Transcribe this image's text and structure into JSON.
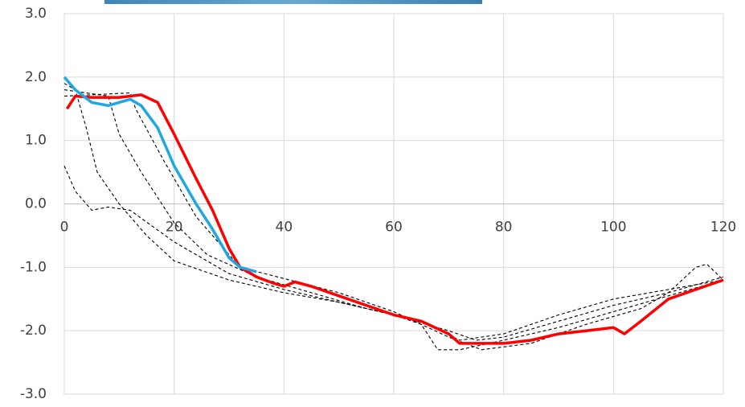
{
  "chart_data": {
    "type": "line",
    "xlim": [
      0,
      120
    ],
    "xticks": [
      0,
      20,
      40,
      60,
      80,
      100,
      120
    ],
    "ylim": [
      -3,
      3
    ],
    "yticks": [
      {
        "value": -3,
        "label": "-3.0"
      },
      {
        "value": -2,
        "label": "-2.0"
      },
      {
        "value": -1,
        "label": "-1.0"
      },
      {
        "value": 0,
        "label": "0.0"
      },
      {
        "value": 1,
        "label": "1.0"
      },
      {
        "value": 2,
        "label": "2.0"
      },
      {
        "value": 3,
        "label": "3.0"
      }
    ],
    "grid": true,
    "series": [
      {
        "color": "#000000",
        "dashed": true,
        "x": [
          0,
          2,
          4,
          6,
          10,
          15,
          20,
          30,
          40,
          50,
          60,
          70,
          75,
          80,
          90,
          100,
          110,
          115,
          117,
          120
        ],
        "values": [
          1.9,
          1.8,
          1.2,
          0.5,
          0,
          -0.5,
          -0.9,
          -1.2,
          -1.4,
          -1.55,
          -1.75,
          -2.0,
          -2.15,
          -2.1,
          -1.85,
          -1.6,
          -1.4,
          -1.0,
          -0.95,
          -1.2
        ]
      },
      {
        "color": "#000000",
        "dashed": true,
        "x": [
          0,
          2,
          5,
          8,
          12,
          20,
          30,
          40,
          50,
          60,
          65,
          68,
          72,
          80,
          90,
          100,
          110,
          120
        ],
        "values": [
          0.6,
          0.2,
          -0.1,
          -0.05,
          -0.1,
          -0.6,
          -1.1,
          -1.35,
          -1.55,
          -1.75,
          -1.9,
          -2.3,
          -2.3,
          -2.15,
          -1.95,
          -1.7,
          -1.45,
          -1.2
        ]
      },
      {
        "color": "#000000",
        "dashed": true,
        "x": [
          0,
          8,
          10,
          14,
          20,
          26,
          35,
          45,
          55,
          65,
          72,
          80,
          90,
          100,
          110,
          120
        ],
        "values": [
          1.8,
          1.7,
          1.1,
          0.5,
          -0.3,
          -0.8,
          -1.15,
          -1.4,
          -1.65,
          -1.85,
          -2.15,
          -2.05,
          -1.75,
          -1.5,
          -1.35,
          -1.2
        ]
      },
      {
        "color": "#000000",
        "dashed": true,
        "x": [
          0,
          12,
          13,
          18,
          24,
          30,
          32,
          50,
          60,
          70,
          76,
          85,
          95,
          105,
          110,
          120
        ],
        "values": [
          1.7,
          1.75,
          1.5,
          0.7,
          -0.2,
          -0.8,
          -1.0,
          -1.4,
          -1.7,
          -2.1,
          -2.3,
          -2.2,
          -1.9,
          -1.65,
          -1.4,
          -1.15
        ]
      },
      {
        "color": "#ff0000",
        "dashed": false,
        "x": [
          0.5,
          2,
          5,
          10,
          14,
          17,
          20,
          24,
          27,
          30,
          32,
          35,
          38,
          40,
          42,
          45,
          50,
          55,
          60,
          65,
          70,
          72,
          75,
          80,
          85,
          90,
          95,
          100,
          102,
          105,
          110,
          115,
          120
        ],
        "values": [
          1.5,
          1.7,
          1.68,
          1.68,
          1.72,
          1.6,
          1.1,
          0.4,
          -0.1,
          -0.7,
          -1.0,
          -1.15,
          -1.25,
          -1.3,
          -1.23,
          -1.3,
          -1.45,
          -1.6,
          -1.75,
          -1.85,
          -2.05,
          -2.2,
          -2.2,
          -2.2,
          -2.15,
          -2.05,
          -2.0,
          -1.95,
          -2.05,
          -1.85,
          -1.5,
          -1.35,
          -1.2
        ]
      },
      {
        "color": "#1fa8e0",
        "dashed": false,
        "x": [
          0,
          2,
          5,
          8,
          12,
          14,
          17,
          20,
          24,
          27,
          30,
          32,
          35
        ],
        "values": [
          2.0,
          1.8,
          1.6,
          1.55,
          1.65,
          1.55,
          1.2,
          0.6,
          0,
          -0.4,
          -0.85,
          -1.0,
          -1.07
        ]
      }
    ]
  }
}
